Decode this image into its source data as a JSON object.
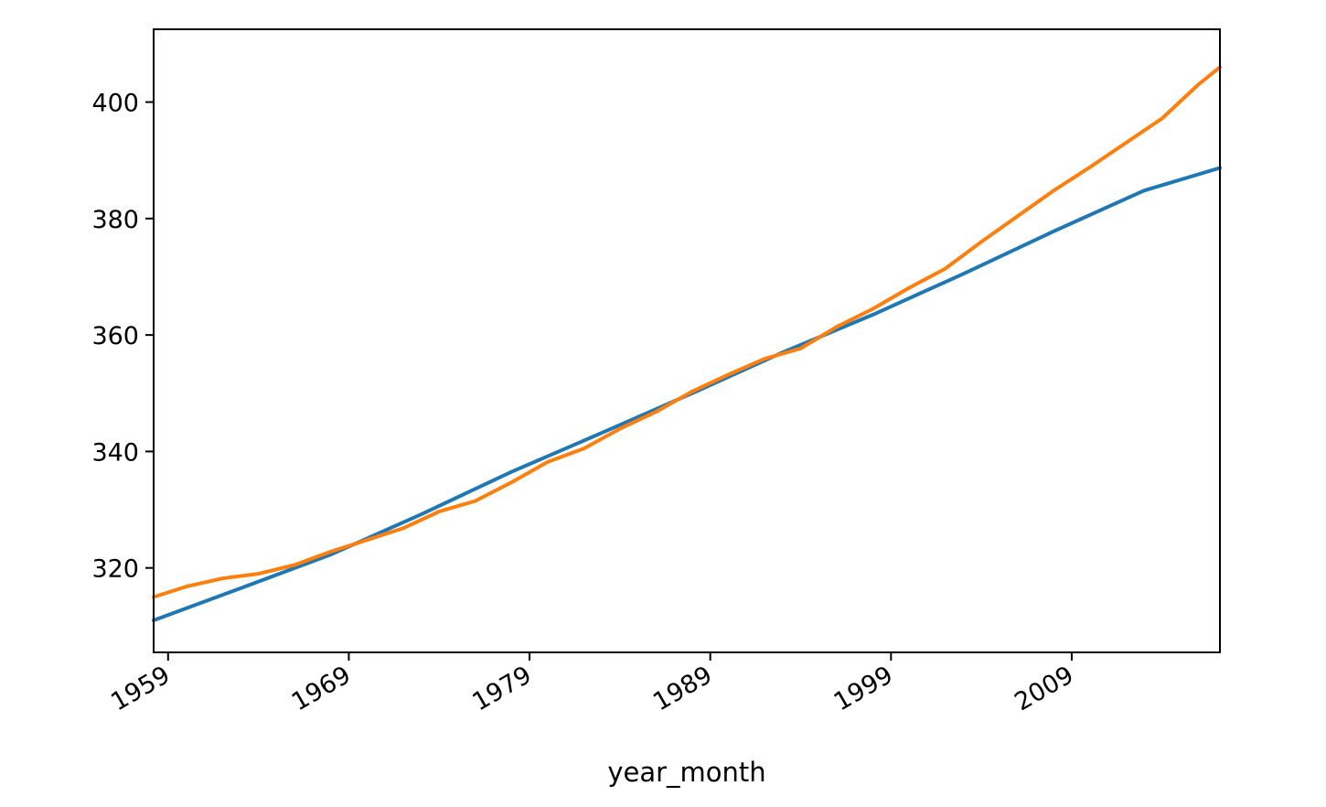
{
  "chart_data": {
    "type": "line",
    "title": "",
    "xlabel": "year_month",
    "ylabel": "",
    "grid": false,
    "legend": "none",
    "xlim": [
      1958.2,
      2017.2
    ],
    "ylim": [
      305.5,
      412.5
    ],
    "x_ticks": [
      {
        "value": 1959,
        "label": "1959"
      },
      {
        "value": 1969,
        "label": "1969"
      },
      {
        "value": 1979,
        "label": "1979"
      },
      {
        "value": 1989,
        "label": "1989"
      },
      {
        "value": 1999,
        "label": "1999"
      },
      {
        "value": 2009,
        "label": "2009"
      }
    ],
    "y_ticks": [
      {
        "value": 320,
        "label": "320"
      },
      {
        "value": 340,
        "label": "340"
      },
      {
        "value": 360,
        "label": "360"
      },
      {
        "value": 380,
        "label": "380"
      },
      {
        "value": 400,
        "label": "400"
      }
    ],
    "series": [
      {
        "color": "#1f77b4",
        "x": [
          1958.2,
          1963,
          1968,
          1973,
          1978,
          1983,
          1988,
          1993,
          1998,
          2003,
          2008,
          2013,
          2017.2
        ],
        "y": [
          311.0,
          316.5,
          322.3,
          329.2,
          336.5,
          343.2,
          350.0,
          357.0,
          363.5,
          370.5,
          377.8,
          384.8,
          388.7
        ]
      },
      {
        "color": "#ff7f0e",
        "x": [
          1958.2,
          1960,
          1962,
          1964,
          1966,
          1968,
          1970,
          1972,
          1974,
          1976,
          1978,
          1980,
          1982,
          1984,
          1986,
          1988,
          1990,
          1992,
          1994,
          1996,
          1998,
          2000,
          2002,
          2004,
          2006,
          2008,
          2010,
          2012,
          2014,
          2016,
          2017.2
        ],
        "y": [
          315.0,
          316.8,
          318.2,
          319.0,
          320.5,
          322.8,
          324.8,
          326.8,
          329.7,
          331.5,
          334.7,
          338.2,
          340.5,
          343.9,
          346.8,
          350.3,
          353.2,
          355.9,
          357.7,
          361.4,
          364.5,
          368.1,
          371.4,
          376.0,
          380.4,
          384.8,
          388.8,
          393.0,
          397.2,
          403.0,
          406.0
        ]
      }
    ]
  }
}
